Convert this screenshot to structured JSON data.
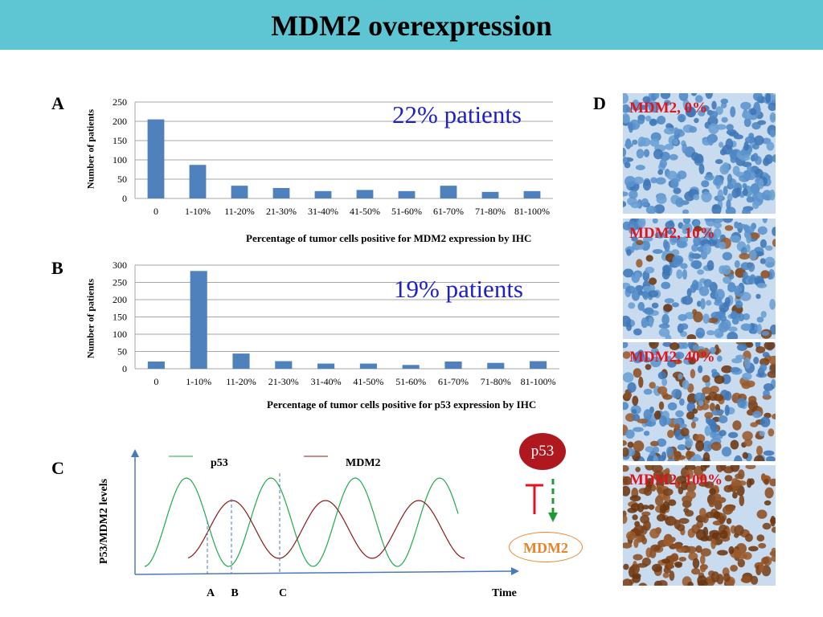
{
  "title": "MDM2 overexpression",
  "panels": {
    "a": "A",
    "b": "B",
    "c": "C",
    "d": "D"
  },
  "chart_data": [
    {
      "type": "bar",
      "title": "",
      "ylabel": "Number of patients",
      "xlabel": "Percentage of tumor cells positive for MDM2 expression by IHC",
      "categories": [
        "0",
        "1-10%",
        "11-20%",
        "21-30%",
        "31-40%",
        "41-50%",
        "51-60%",
        "61-70%",
        "71-80%",
        "81-100%"
      ],
      "values": [
        205,
        87,
        33,
        27,
        19,
        22,
        19,
        33,
        17,
        19
      ],
      "ylim": [
        0,
        250
      ],
      "yticks": [
        0,
        50,
        100,
        150,
        200,
        250
      ],
      "grid": true,
      "annotation": "22% patients",
      "color": "#4f81bd"
    },
    {
      "type": "bar",
      "title": "",
      "ylabel": "Number of patients",
      "xlabel": "Percentage of tumor cells positive for p53 expression by IHC",
      "categories": [
        "0",
        "1-10%",
        "11-20%",
        "21-30%",
        "31-40%",
        "41-50%",
        "51-60%",
        "61-70%",
        "71-80%",
        "81-100%"
      ],
      "values": [
        21,
        283,
        44,
        22,
        15,
        15,
        11,
        21,
        17,
        22
      ],
      "ylim": [
        0,
        300
      ],
      "yticks": [
        0,
        50,
        100,
        150,
        200,
        250,
        300
      ],
      "grid": true,
      "annotation": "19% patients",
      "color": "#4f81bd"
    },
    {
      "type": "line",
      "title": "",
      "ylabel": "P53/MDM2 levels",
      "xlabel": "Time",
      "series": [
        {
          "name": "p53",
          "color": "#1faa4a"
        },
        {
          "name": "MDM2",
          "color": "#8b1a1a"
        }
      ],
      "markers": [
        "A",
        "B",
        "C"
      ],
      "grid": false,
      "legend": "top"
    }
  ],
  "ihc_panels": [
    {
      "label": "MDM2, 0%",
      "stain": 0
    },
    {
      "label": "MDM2, 10%",
      "stain": 0.1
    },
    {
      "label": "MDM2, 40%",
      "stain": 0.4
    },
    {
      "label": "MDM2, 100%",
      "stain": 1.0
    }
  ],
  "pathway": {
    "p53": "p53",
    "mdm2": "MDM2",
    "inhibit_color": "#e0141e",
    "activate_color": "#1e9a3a"
  }
}
